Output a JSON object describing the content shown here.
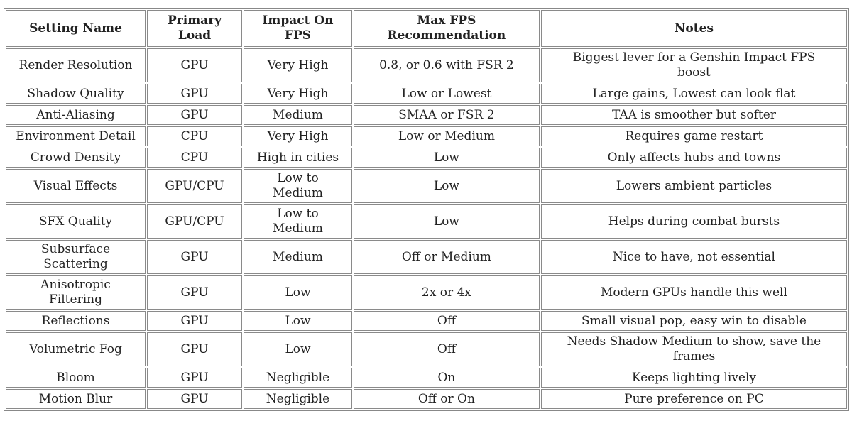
{
  "headers": [
    "Setting Name",
    "Primary Load",
    "Impact On FPS",
    "Max FPS Recommendation",
    "Notes"
  ],
  "rows": [
    [
      "Render Resolution",
      "GPU",
      "Very High",
      "0.8, or 0.6 with FSR 2",
      "Biggest lever for a Genshin Impact FPS boost"
    ],
    [
      "Shadow Quality",
      "GPU",
      "Very High",
      "Low or Lowest",
      "Large gains, Lowest can look flat"
    ],
    [
      "Anti-Aliasing",
      "GPU",
      "Medium",
      "SMAA or FSR 2",
      "TAA is smoother but softer"
    ],
    [
      "Environment Detail",
      "CPU",
      "Very High",
      "Low or Medium",
      "Requires game restart"
    ],
    [
      "Crowd Density",
      "CPU",
      "High in cities",
      "Low",
      "Only affects hubs and towns"
    ],
    [
      "Visual Effects",
      "GPU/CPU",
      "Low to Medium",
      "Low",
      "Lowers ambient particles"
    ],
    [
      "SFX Quality",
      "GPU/CPU",
      "Low to Medium",
      "Low",
      "Helps during combat bursts"
    ],
    [
      "Subsurface Scattering",
      "GPU",
      "Medium",
      "Off or Medium",
      "Nice to have, not essential"
    ],
    [
      "Anisotropic Filtering",
      "GPU",
      "Low",
      "2x or 4x",
      "Modern GPUs handle this well"
    ],
    [
      "Reflections",
      "GPU",
      "Low",
      "Off",
      "Small visual pop, easy win to disable"
    ],
    [
      "Volumetric Fog",
      "GPU",
      "Low",
      "Off",
      "Needs Shadow Medium to show, save the frames"
    ],
    [
      "Bloom",
      "GPU",
      "Negligible",
      "On",
      "Keeps lighting lively"
    ],
    [
      "Motion Blur",
      "GPU",
      "Negligible",
      "Off or On",
      "Pure preference on PC"
    ]
  ]
}
